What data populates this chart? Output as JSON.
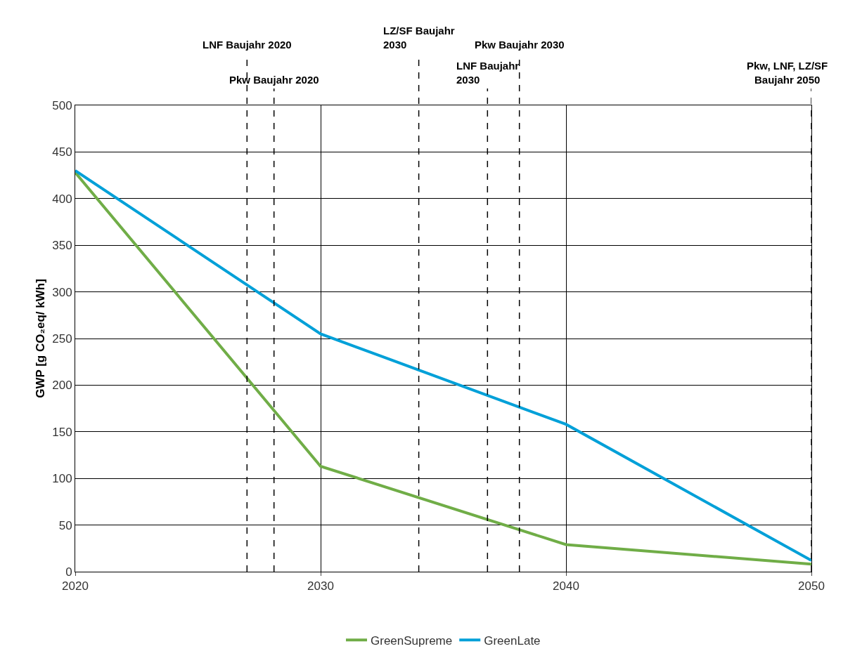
{
  "chart_data": {
    "type": "line",
    "ylabel": "GWP [g CO₂eq/ kWh]",
    "x": [
      2020,
      2030,
      2040,
      2050
    ],
    "series": [
      {
        "name": "GreenSupreme",
        "color": "#70ad47",
        "values": [
          428,
          113,
          29,
          8
        ]
      },
      {
        "name": "GreenLate",
        "color": "#00a0d8",
        "values": [
          430,
          255,
          158,
          12
        ]
      }
    ],
    "xlim": [
      2020,
      2050
    ],
    "xticks": [
      2020,
      2030,
      2040,
      2050
    ],
    "ylim": [
      0,
      500
    ],
    "yticks": [
      0,
      50,
      100,
      150,
      200,
      250,
      300,
      350,
      400,
      450,
      500
    ],
    "grid": true,
    "legend": "bottom",
    "marker": "none",
    "line_style": "solid",
    "ref_lines": [
      {
        "axis": "x",
        "value": 2027,
        "label": "LNF Baujahr 2020",
        "color": "#000000",
        "line_style": "dashed"
      },
      {
        "axis": "x",
        "value": 2028.1,
        "label": "Pkw Baujahr 2020",
        "color": "#000000",
        "line_style": "dashed"
      },
      {
        "axis": "x",
        "value": 2034,
        "label": "LZ/SF Baujahr\n2030",
        "color": "#000000",
        "line_style": "dashed"
      },
      {
        "axis": "x",
        "value": 2036.8,
        "label": "LNF Baujahr\n2030",
        "color": "#000000",
        "line_style": "dashed"
      },
      {
        "axis": "x",
        "value": 2038.1,
        "label": "Pkw Baujahr 2030",
        "color": "#000000",
        "line_style": "dashed"
      },
      {
        "axis": "x",
        "value": 2050,
        "label": "Pkw, LNF, LZ/SF\nBaujahr 2050",
        "color": "#000000",
        "line_style": "dashed"
      }
    ]
  }
}
